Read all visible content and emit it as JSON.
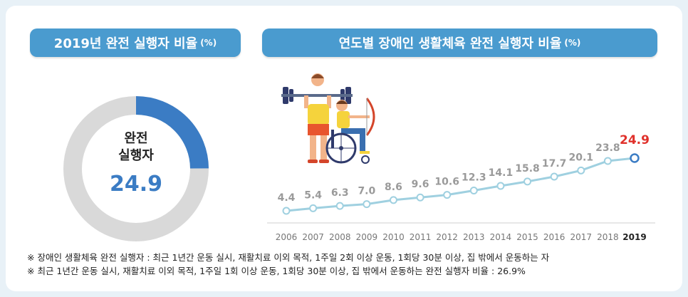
{
  "panels": {
    "left_title": "2019년 완전 실행자 비율",
    "left_unit": "(%)",
    "right_title": "연도별 장애인 생활체육 완전 실행자 비율",
    "right_unit": "(%)"
  },
  "donut": {
    "label_line1": "완전",
    "label_line2": "실행자",
    "value_text": "24.9"
  },
  "colors": {
    "accent_blue": "#3b7cc4",
    "ring_gray": "#d9d9d9",
    "line": "#9fd0e0",
    "highlight_red": "#e0312b",
    "pill_bg": "#4a9bcf"
  },
  "chart_data": [
    {
      "type": "pie",
      "title": "2019년 완전 실행자 비율 (%)",
      "slices": [
        {
          "label": "완전 실행자",
          "value": 24.9
        },
        {
          "label": "",
          "value": 75.1
        }
      ]
    },
    {
      "type": "line",
      "title": "연도별 장애인 생활체육 완전 실행자 비율 (%)",
      "x": [
        "2006",
        "2007",
        "2008",
        "2009",
        "2010",
        "2011",
        "2012",
        "2013",
        "2014",
        "2015",
        "2016",
        "2017",
        "2018",
        "2019"
      ],
      "series": [
        {
          "values": [
            4.4,
            5.4,
            6.3,
            7.0,
            8.6,
            9.6,
            10.6,
            12.3,
            14.1,
            15.8,
            17.7,
            20.1,
            23.8,
            24.9
          ]
        }
      ],
      "value_labels": [
        "4.4",
        "5.4",
        "6.3",
        "7.0",
        "8.6",
        "9.6",
        "10.6",
        "12.3",
        "14.1",
        "15.8",
        "17.7",
        "20.1",
        "23.8",
        "24.9"
      ],
      "highlight_index": 13,
      "ylim": [
        0,
        30
      ],
      "grid": false
    }
  ],
  "footnotes": [
    "※ 장애인 생활체육 완전 실행자 : 최근 1년간 운동 실시, 재활치료 이외 목적, 1주일 2회 이상 운동, 1회당 30분 이상, 집 밖에서 운동하는 자",
    "※ 최근 1년간 운동 실시, 재활치료 이외 목적, 1주일 1회 이상 운동, 1회당 30분 이상, 집 밖에서 운동하는 완전 실행자 비율 : 26.9%"
  ]
}
